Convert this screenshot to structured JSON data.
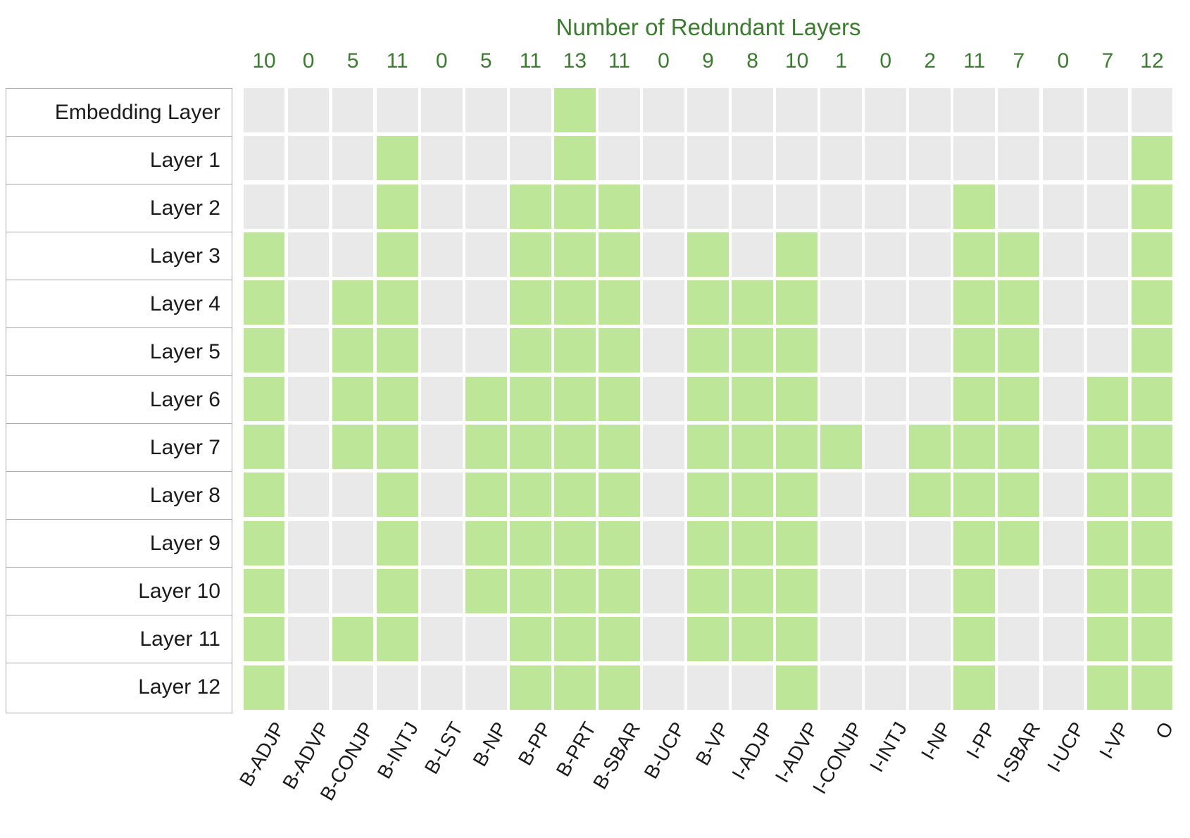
{
  "colors": {
    "redundant_cell": "#bee699",
    "non_redundant_cell": "#e9e9e9",
    "axis_text_green": "#3c7c30",
    "label_text": "#1a1a1a",
    "panel_border": "#a9a9a9",
    "background": "#ffffff"
  },
  "chart_data": {
    "type": "heatmap",
    "title": "Number of Redundant Layers",
    "columns": [
      "B-ADJP",
      "B-ADVP",
      "B-CONJP",
      "B-INTJ",
      "B-LST",
      "B-NP",
      "B-PP",
      "B-PRT",
      "B-SBAR",
      "B-UCP",
      "B-VP",
      "I-ADJP",
      "I-ADVP",
      "I-CONJP",
      "I-INTJ",
      "I-NP",
      "I-PP",
      "I-SBAR",
      "I-UCP",
      "I-VP",
      "O"
    ],
    "column_counts": [
      10,
      0,
      5,
      11,
      0,
      5,
      11,
      13,
      11,
      0,
      9,
      8,
      10,
      1,
      0,
      2,
      11,
      7,
      0,
      7,
      12
    ],
    "rows": [
      "Embedding Layer",
      "Layer 1",
      "Layer 2",
      "Layer 3",
      "Layer 4",
      "Layer 5",
      "Layer 6",
      "Layer 7",
      "Layer 8",
      "Layer 9",
      "Layer 10",
      "Layer 11",
      "Layer 12"
    ],
    "values": [
      [
        0,
        0,
        0,
        0,
        0,
        0,
        0,
        1,
        0,
        0,
        0,
        0,
        0,
        0,
        0,
        0,
        0,
        0,
        0,
        0,
        0
      ],
      [
        0,
        0,
        0,
        1,
        0,
        0,
        0,
        1,
        0,
        0,
        0,
        0,
        0,
        0,
        0,
        0,
        0,
        0,
        0,
        0,
        1
      ],
      [
        0,
        0,
        0,
        1,
        0,
        0,
        1,
        1,
        1,
        0,
        0,
        0,
        0,
        0,
        0,
        0,
        1,
        0,
        0,
        0,
        1
      ],
      [
        1,
        0,
        0,
        1,
        0,
        0,
        1,
        1,
        1,
        0,
        1,
        0,
        1,
        0,
        0,
        0,
        1,
        1,
        0,
        0,
        1
      ],
      [
        1,
        0,
        1,
        1,
        0,
        0,
        1,
        1,
        1,
        0,
        1,
        1,
        1,
        0,
        0,
        0,
        1,
        1,
        0,
        0,
        1
      ],
      [
        1,
        0,
        1,
        1,
        0,
        0,
        1,
        1,
        1,
        0,
        1,
        1,
        1,
        0,
        0,
        0,
        1,
        1,
        0,
        0,
        1
      ],
      [
        1,
        0,
        1,
        1,
        0,
        1,
        1,
        1,
        1,
        0,
        1,
        1,
        1,
        0,
        0,
        0,
        1,
        1,
        0,
        1,
        1
      ],
      [
        1,
        0,
        1,
        1,
        0,
        1,
        1,
        1,
        1,
        0,
        1,
        1,
        1,
        1,
        0,
        1,
        1,
        1,
        0,
        1,
        1
      ],
      [
        1,
        0,
        0,
        1,
        0,
        1,
        1,
        1,
        1,
        0,
        1,
        1,
        1,
        0,
        0,
        1,
        1,
        1,
        0,
        1,
        1
      ],
      [
        1,
        0,
        0,
        1,
        0,
        1,
        1,
        1,
        1,
        0,
        1,
        1,
        1,
        0,
        0,
        0,
        1,
        1,
        0,
        1,
        1
      ],
      [
        1,
        0,
        0,
        1,
        0,
        1,
        1,
        1,
        1,
        0,
        1,
        1,
        1,
        0,
        0,
        0,
        1,
        0,
        0,
        1,
        1
      ],
      [
        1,
        0,
        1,
        1,
        0,
        0,
        1,
        1,
        1,
        0,
        1,
        1,
        1,
        0,
        0,
        0,
        1,
        0,
        0,
        1,
        1
      ],
      [
        1,
        0,
        0,
        0,
        0,
        0,
        1,
        1,
        1,
        0,
        0,
        0,
        1,
        0,
        0,
        0,
        1,
        0,
        0,
        1,
        1
      ]
    ],
    "value_meaning": {
      "1": "redundant (green cell)",
      "0": "not redundant (gray cell)"
    },
    "layout": {
      "legend": "none",
      "grid": "off",
      "x_tick_rotation_deg": 60
    }
  }
}
